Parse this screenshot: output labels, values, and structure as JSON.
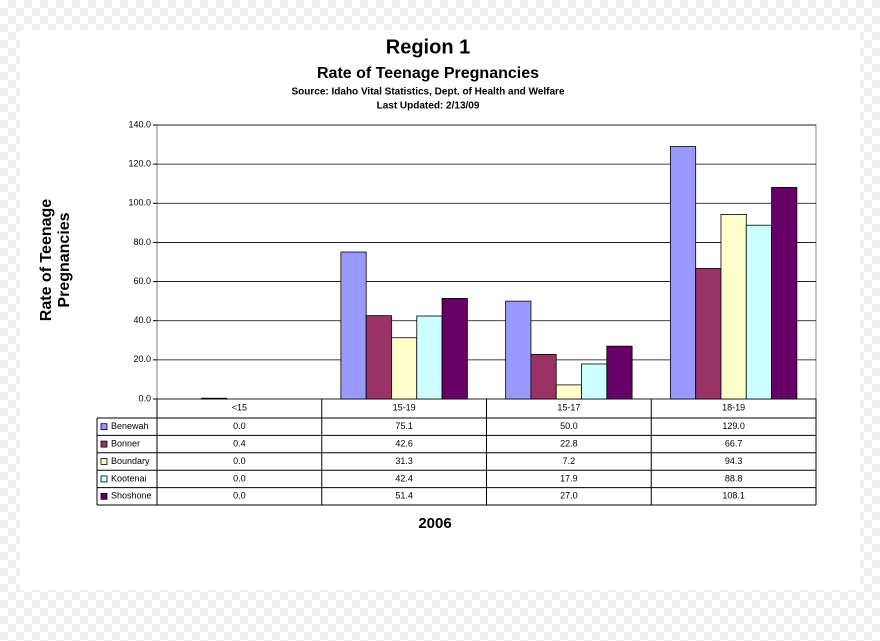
{
  "chart_data": {
    "type": "bar",
    "title": "Region 1",
    "subtitle": "Rate of Teenage Pregnancies",
    "source": "Source:  Idaho Vital Statistics, Dept. of Health and Welfare",
    "last_updated": "Last Updated: 2/13/09",
    "x_label": "2006",
    "y_label": "Rate of Teenage Pregnancies",
    "categories": [
      "<15",
      "15-19",
      "15-17",
      "18-19"
    ],
    "ylim": [
      0,
      140
    ],
    "yticks": [
      {
        "value": 0,
        "label": "0.0"
      },
      {
        "value": 20,
        "label": "20.0"
      },
      {
        "value": 40,
        "label": "40.0"
      },
      {
        "value": 60,
        "label": "60.0"
      },
      {
        "value": 80,
        "label": "80.0"
      },
      {
        "value": 100,
        "label": "100.0"
      },
      {
        "value": 120,
        "label": "120.0"
      },
      {
        "value": 140,
        "label": "140.0"
      }
    ],
    "grid": true,
    "series": [
      {
        "name": "Benewah",
        "color": "#9999ff",
        "values": [
          0,
          75.1,
          50,
          129
        ],
        "value_labels": [
          "0.0",
          "75.1",
          "50.0",
          "129.0"
        ]
      },
      {
        "name": "Bonner",
        "color": "#993366",
        "values": [
          0.4,
          42.6,
          22.8,
          66.7
        ],
        "value_labels": [
          "0.4",
          "42.6",
          "22.8",
          "66.7"
        ]
      },
      {
        "name": "Boundary",
        "color": "#ffffcc",
        "values": [
          0,
          31.3,
          7.2,
          94.3
        ],
        "value_labels": [
          "0.0",
          "31.3",
          "7.2",
          "94.3"
        ]
      },
      {
        "name": "Kootenai",
        "color": "#ccffff",
        "values": [
          0,
          42.4,
          17.9,
          88.8
        ],
        "value_labels": [
          "0.0",
          "42.4",
          "17.9",
          "88.8"
        ]
      },
      {
        "name": "Shoshone",
        "color": "#660066",
        "values": [
          0,
          51.4,
          27,
          108.1
        ],
        "value_labels": [
          "0.0",
          "51.4",
          "27.0",
          "108.1"
        ]
      }
    ]
  }
}
